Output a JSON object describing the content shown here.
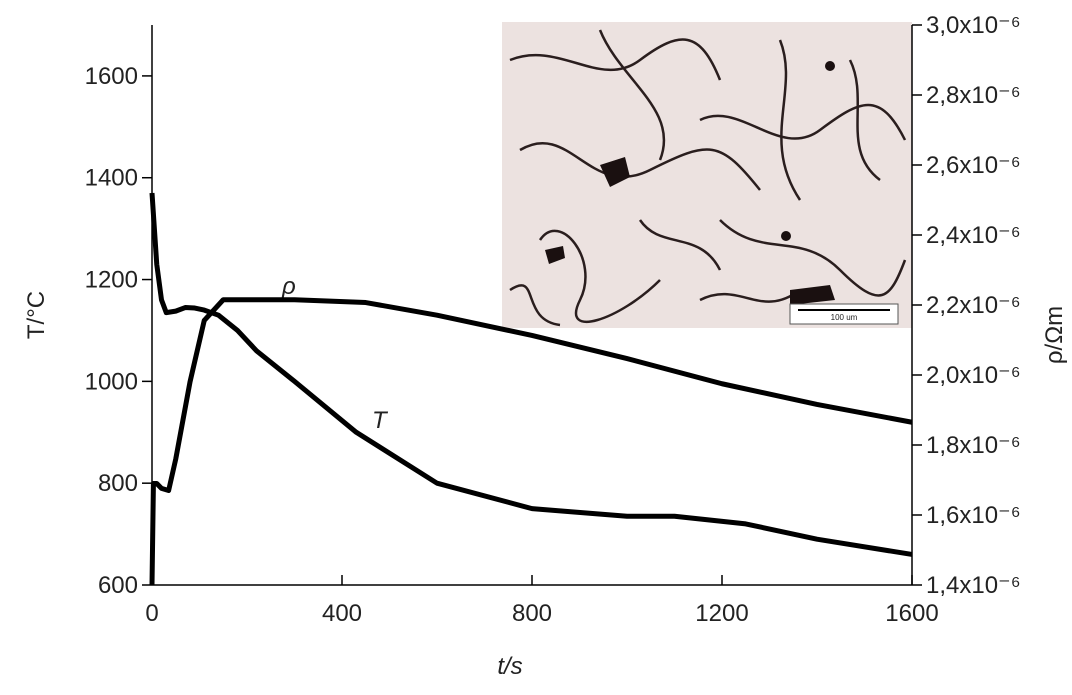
{
  "chart_data": {
    "type": "line",
    "xlabel": "t/s",
    "ylabel": "T/°C",
    "y2label": "ρ/Ωm",
    "annotations": [
      "ρ",
      "T"
    ],
    "inset_scale_label": "100 um",
    "xlim": [
      0,
      1600
    ],
    "xticks": [
      0,
      400,
      800,
      1200,
      1600
    ],
    "ylim": [
      600,
      1700
    ],
    "yticks": [
      600,
      800,
      1000,
      1200,
      1400,
      1600
    ],
    "y2lim": [
      1.4e-06,
      3e-06
    ],
    "y2ticks": [
      {
        "value": 1.4e-06,
        "label": "1,4x10⁻⁶"
      },
      {
        "value": 1.6e-06,
        "label": "1,6x10⁻⁶"
      },
      {
        "value": 1.8e-06,
        "label": "1,8x10⁻⁶"
      },
      {
        "value": 2e-06,
        "label": "2,0x10⁻⁶"
      },
      {
        "value": 2.2e-06,
        "label": "2,2x10⁻⁶"
      },
      {
        "value": 2.4e-06,
        "label": "2,4x10⁻⁶"
      },
      {
        "value": 2.6e-06,
        "label": "2,6x10⁻⁶"
      },
      {
        "value": 2.8e-06,
        "label": "2,8x10⁻⁶"
      },
      {
        "value": 3e-06,
        "label": "3,0x10⁻⁶"
      }
    ],
    "series": [
      {
        "name": "T",
        "color": "#000000",
        "x": [
          0,
          10,
          20,
          30,
          50,
          70,
          90,
          110,
          140,
          180,
          220,
          300,
          430,
          600,
          800,
          1000,
          1100,
          1250,
          1400,
          1600
        ],
        "values": [
          1370,
          1230,
          1160,
          1135,
          1138,
          1145,
          1144,
          1140,
          1130,
          1100,
          1060,
          1000,
          900,
          800,
          750,
          735,
          735,
          720,
          690,
          660
        ]
      },
      {
        "name": "ρ",
        "color": "#000000",
        "axis": "y2",
        "x": [
          0,
          3,
          10,
          20,
          35,
          50,
          80,
          110,
          150,
          300,
          450,
          600,
          800,
          1000,
          1200,
          1400,
          1600
        ],
        "values": [
          1.4e-06,
          1.69e-06,
          1.69e-06,
          1.676e-06,
          1.67e-06,
          1.76e-06,
          1.98e-06,
          2.156e-06,
          2.215e-06,
          2.215e-06,
          2.207e-06,
          2.171e-06,
          2.113e-06,
          2.047e-06,
          1.975e-06,
          1.916e-06,
          1.865e-06
        ]
      }
    ]
  }
}
